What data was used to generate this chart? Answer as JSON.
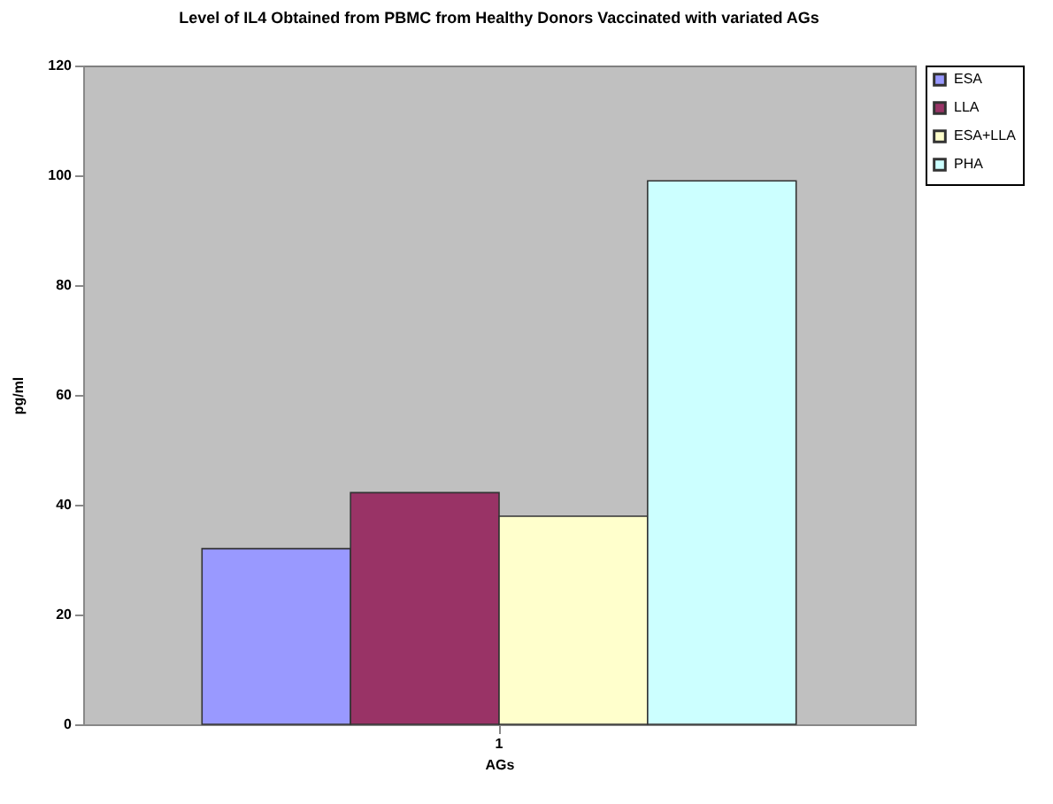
{
  "chart_data": {
    "type": "bar",
    "title": "Level of IL4 Obtained from PBMC from Healthy Donors Vaccinated with variated AGs",
    "xlabel": "AGs",
    "ylabel": "pg/ml",
    "categories": [
      "1"
    ],
    "series": [
      {
        "name": "ESA",
        "color": "#9999ff",
        "values": [
          32
        ]
      },
      {
        "name": "LLA",
        "color": "#993366",
        "values": [
          42.2
        ]
      },
      {
        "name": "ESA+LLA",
        "color": "#ffffcc",
        "values": [
          37.9
        ]
      },
      {
        "name": "PHA",
        "color": "#ccffff",
        "values": [
          99
        ]
      }
    ],
    "ylim": [
      0,
      120
    ],
    "yticks": [
      0,
      20,
      40,
      60,
      80,
      100,
      120
    ],
    "grid": false,
    "legend": "right"
  }
}
